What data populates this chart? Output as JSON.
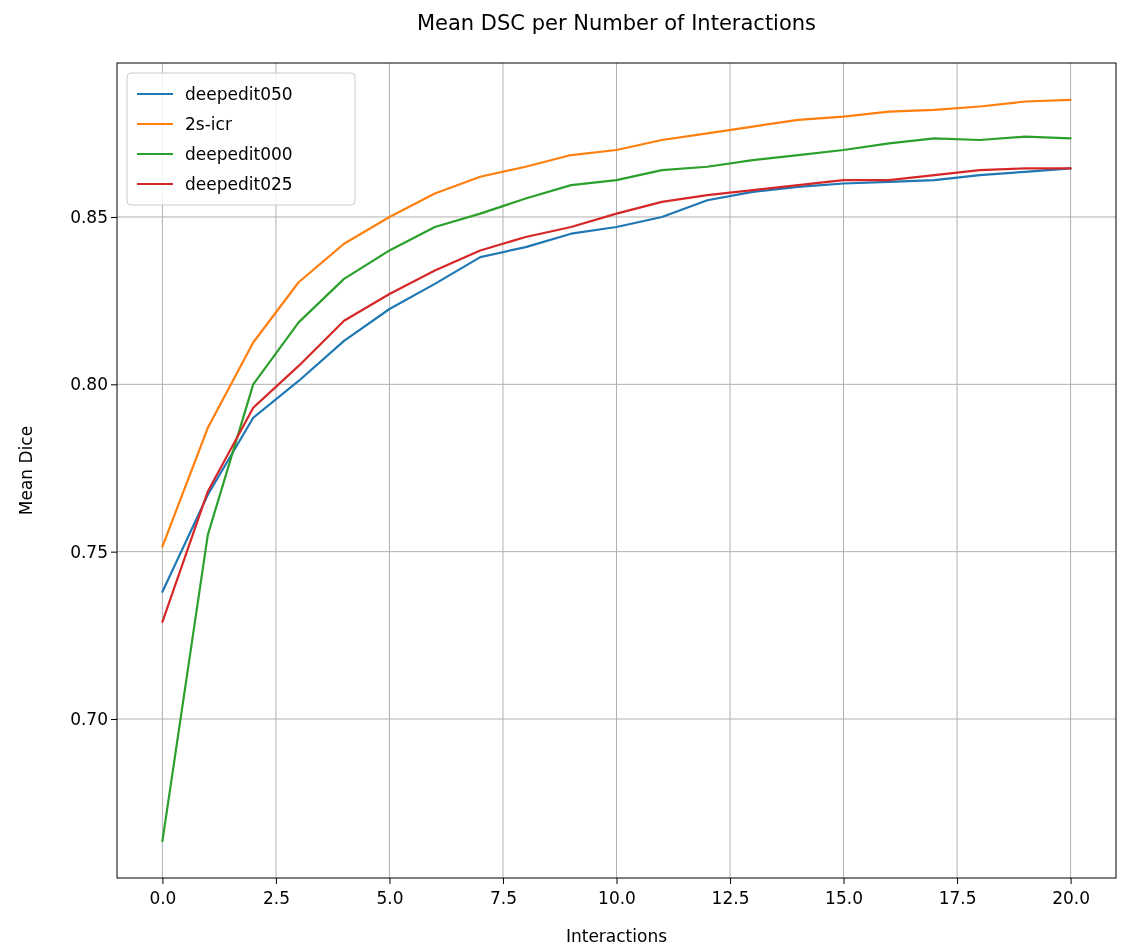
{
  "chart_data": {
    "type": "line",
    "title": "Mean DSC per Number of Interactions",
    "xlabel": "Interactions",
    "ylabel": "Mean Dice",
    "x": [
      0,
      1,
      2,
      3,
      4,
      5,
      6,
      7,
      8,
      9,
      10,
      11,
      12,
      13,
      14,
      15,
      16,
      17,
      18,
      19,
      20
    ],
    "series": [
      {
        "name": "deepedit050",
        "color": "#1f77b4",
        "values": [
          0.738,
          0.767,
          0.79,
          0.801,
          0.813,
          0.8225,
          0.83,
          0.838,
          0.841,
          0.845,
          0.847,
          0.85,
          0.855,
          0.8575,
          0.859,
          0.86,
          0.8605,
          0.861,
          0.8625,
          0.8635,
          0.8645
        ]
      },
      {
        "name": "2s-icr",
        "color": "#ff7f0e",
        "values": [
          0.7515,
          0.787,
          0.8125,
          0.8305,
          0.842,
          0.85,
          0.857,
          0.862,
          0.865,
          0.8685,
          0.87,
          0.873,
          0.875,
          0.877,
          0.879,
          0.88,
          0.8815,
          0.882,
          0.883,
          0.8845,
          0.885
        ]
      },
      {
        "name": "deepedit000",
        "color": "#2ca02c",
        "values": [
          0.6635,
          0.755,
          0.8,
          0.8185,
          0.8315,
          0.84,
          0.847,
          0.851,
          0.8555,
          0.8595,
          0.861,
          0.864,
          0.865,
          0.867,
          0.8685,
          0.87,
          0.872,
          0.8735,
          0.873,
          0.874,
          0.8735
        ]
      },
      {
        "name": "deepedit025",
        "color": "#d62728",
        "values": [
          0.729,
          0.768,
          0.793,
          0.8055,
          0.819,
          0.827,
          0.834,
          0.84,
          0.844,
          0.847,
          0.851,
          0.8545,
          0.8565,
          0.858,
          0.8595,
          0.861,
          0.861,
          0.8625,
          0.864,
          0.8645,
          0.8645
        ]
      }
    ],
    "xlim": [
      -1,
      21
    ],
    "ylim": [
      0.6525,
      0.896
    ],
    "xticks": [
      {
        "value": 0,
        "label": "0.0"
      },
      {
        "value": 2.5,
        "label": "2.5"
      },
      {
        "value": 5,
        "label": "5.0"
      },
      {
        "value": 7.5,
        "label": "7.5"
      },
      {
        "value": 10,
        "label": "10.0"
      },
      {
        "value": 12.5,
        "label": "12.5"
      },
      {
        "value": 15,
        "label": "15.0"
      },
      {
        "value": 17.5,
        "label": "17.5"
      },
      {
        "value": 20,
        "label": "20.0"
      }
    ],
    "yticks": [
      {
        "value": 0.7,
        "label": "0.70"
      },
      {
        "value": 0.75,
        "label": "0.75"
      },
      {
        "value": 0.8,
        "label": "0.80"
      },
      {
        "value": 0.85,
        "label": "0.85"
      }
    ],
    "grid": true,
    "legend": "top left",
    "marker": "none",
    "line_style": "solid"
  }
}
